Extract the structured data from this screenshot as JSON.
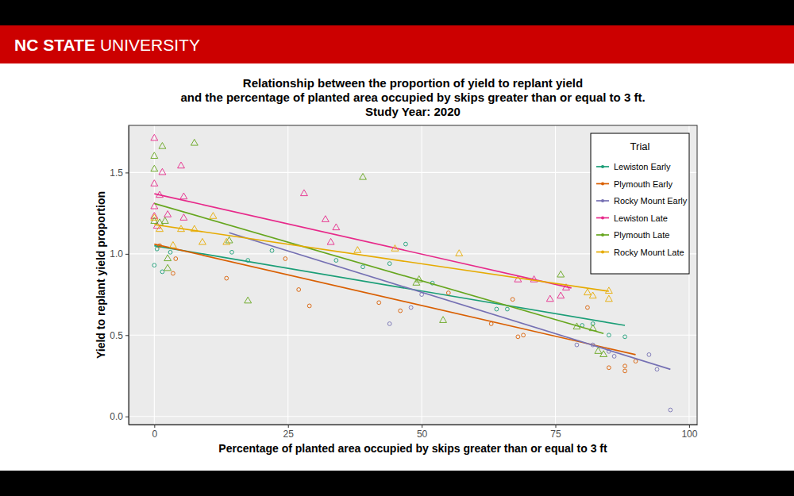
{
  "header": {
    "bold": "NC STATE",
    "regular": "UNIVERSITY"
  },
  "chart_data": {
    "type": "scatter",
    "title": "Relationship between the proportion of yield to replant yield\nand the percentage of planted area occupied by skips greater than or equal to 3 ft.\nStudy Year: 2020",
    "x_label": "Percentage of planted area occupied by skips greater than or equal to 3 ft",
    "y_label": "Yield to replant yield proportion",
    "legend_title": "Trial",
    "legend": "top-right",
    "grid": true,
    "xlim": [
      -4.8,
      101.5
    ],
    "xticks": [
      0,
      25,
      50,
      75,
      100
    ],
    "ylim": [
      -0.05,
      1.79
    ],
    "yticks": [
      {
        "value": 0,
        "label": "0.0"
      },
      0.5,
      {
        "value": 1,
        "label": "1.0"
      },
      1.5
    ],
    "series": [
      {
        "name": "Lewiston Early",
        "color": "#1b9e77",
        "marker": "circle",
        "line_style": "solid",
        "x": [
          0,
          0.5,
          1.5,
          3,
          14.5,
          17.5,
          22,
          34,
          39,
          44,
          47,
          52,
          64,
          66,
          80,
          82,
          85,
          88
        ],
        "values": [
          0.93,
          1.03,
          0.89,
          1.01,
          1.01,
          0.96,
          1.02,
          0.96,
          0.92,
          0.94,
          1.06,
          0.82,
          0.66,
          0.66,
          0.56,
          0.57,
          0.5,
          0.49
        ],
        "fit": {
          "x": [
            0,
            88
          ],
          "values": [
            1.05,
            0.56
          ]
        }
      },
      {
        "name": "Plymouth Early",
        "color": "#d95f02",
        "marker": "circle",
        "line_style": "solid",
        "x": [
          1,
          3.5,
          4,
          13.5,
          24.5,
          27,
          29,
          42,
          46,
          55,
          63,
          67,
          68,
          69,
          81,
          85,
          88,
          88,
          90
        ],
        "values": [
          1.05,
          0.88,
          0.97,
          0.85,
          0.97,
          0.78,
          0.68,
          0.7,
          0.65,
          0.76,
          0.57,
          0.72,
          0.49,
          0.5,
          0.67,
          0.3,
          0.28,
          0.31,
          0.34
        ],
        "fit": {
          "x": [
            0,
            90
          ],
          "values": [
            1.06,
            0.38
          ]
        }
      },
      {
        "name": "Rocky Mount Early",
        "color": "#7570b3",
        "marker": "circle",
        "line_style": "solid",
        "x": [
          44,
          48,
          50,
          79,
          82,
          85,
          86,
          92.5,
          94,
          96.5
        ],
        "values": [
          0.57,
          0.67,
          0.75,
          0.44,
          0.44,
          0.4,
          0.37,
          0.38,
          0.29,
          0.04
        ],
        "fit": {
          "x": [
            14,
            96.5
          ],
          "values": [
            1.13,
            0.29
          ]
        }
      },
      {
        "name": "Lewiston Late",
        "color": "#e7298a",
        "marker": "triangle",
        "line_style": "solid",
        "x": [
          0,
          1.5,
          0,
          5,
          5.5,
          1,
          0,
          0,
          0.5,
          2.5,
          5.5,
          28,
          32,
          34,
          33,
          68,
          71,
          74,
          76,
          77
        ],
        "values": [
          1.71,
          1.5,
          1.43,
          1.54,
          1.35,
          1.36,
          1.29,
          1.23,
          1.17,
          1.24,
          1.22,
          1.37,
          1.21,
          1.16,
          1.07,
          0.84,
          0.84,
          0.72,
          0.74,
          0.79
        ],
        "fit": {
          "x": [
            0,
            78
          ],
          "values": [
            1.37,
            0.79
          ]
        }
      },
      {
        "name": "Plymouth Late",
        "color": "#66a61e",
        "marker": "triangle",
        "line_style": "solid",
        "x": [
          0,
          0,
          1.5,
          7.5,
          1,
          2,
          2.5,
          2.5,
          0,
          14,
          17.5,
          39,
          49,
          49.5,
          54,
          76,
          79,
          82,
          83,
          84
        ],
        "values": [
          1.6,
          1.52,
          1.66,
          1.68,
          1.19,
          1.2,
          0.91,
          0.97,
          1.2,
          1.08,
          0.71,
          1.47,
          0.82,
          0.84,
          0.59,
          0.87,
          0.55,
          0.54,
          0.4,
          0.38
        ],
        "fit": {
          "x": [
            0,
            84
          ],
          "values": [
            1.31,
            0.51
          ]
        }
      },
      {
        "name": "Rocky Mount Late",
        "color": "#e6ab02",
        "marker": "triangle",
        "line_style": "solid",
        "x": [
          0,
          1,
          3.5,
          5,
          7.5,
          9,
          11,
          13.5,
          38,
          45,
          57,
          81,
          82,
          85,
          85
        ],
        "values": [
          1.22,
          1.15,
          1.05,
          1.15,
          1.15,
          1.07,
          1.23,
          1.07,
          1.02,
          1.03,
          1.0,
          0.76,
          0.74,
          0.72,
          0.77
        ],
        "fit": {
          "x": [
            0,
            85
          ],
          "values": [
            1.18,
            0.77
          ]
        }
      }
    ]
  }
}
